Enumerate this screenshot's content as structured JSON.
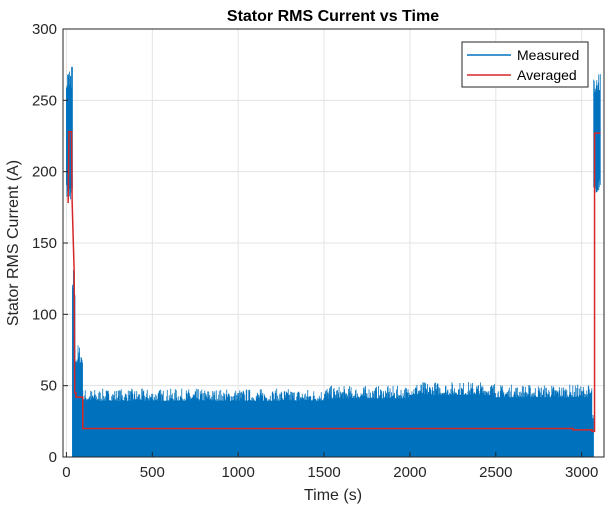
{
  "chart_data": {
    "type": "line",
    "title": "Stator RMS Current vs Time",
    "xlabel": "Time (s)",
    "ylabel": "Stator RMS Current (A)",
    "xlim": [
      -20,
      3130
    ],
    "ylim": [
      0,
      300
    ],
    "xticks": [
      0,
      500,
      1000,
      1500,
      2000,
      2500,
      3000
    ],
    "yticks": [
      0,
      50,
      100,
      150,
      200,
      250,
      300
    ],
    "grid": true,
    "legend_position": "top-right",
    "series": [
      {
        "name": "Measured",
        "color": "#0072BD",
        "style": "noisy-band",
        "segments": [
          {
            "x": [
              0,
              35
            ],
            "low": 180,
            "high": 276
          },
          {
            "x": [
              35,
              50
            ],
            "low": 0,
            "high": 135
          },
          {
            "x": [
              50,
              95
            ],
            "low": 0,
            "high": 80
          },
          {
            "x": [
              95,
              1500
            ],
            "low": 0,
            "high": 48
          },
          {
            "x": [
              1500,
              2000
            ],
            "low": 0,
            "high": 50
          },
          {
            "x": [
              2000,
              2500
            ],
            "low": 0,
            "high": 53
          },
          {
            "x": [
              2500,
              3060
            ],
            "low": 0,
            "high": 51
          },
          {
            "x": [
              3060,
              3070
            ],
            "low": 0,
            "high": 30
          },
          {
            "x": [
              3070,
              3085
            ],
            "low": 180,
            "high": 272
          },
          {
            "x": [
              3085,
              3110
            ],
            "low": 185,
            "high": 273
          }
        ]
      },
      {
        "name": "Averaged",
        "color": "#D95319",
        "x": [
          10,
          15,
          30,
          30,
          33,
          45,
          48,
          55,
          55,
          95,
          95,
          2950,
          2950,
          3060,
          3060,
          3075,
          3075,
          3110
        ],
        "y": [
          178,
          228,
          228,
          225,
          180,
          130,
          45,
          45,
          42,
          42,
          20,
          20,
          19,
          19,
          18,
          18,
          227,
          227
        ]
      }
    ]
  }
}
